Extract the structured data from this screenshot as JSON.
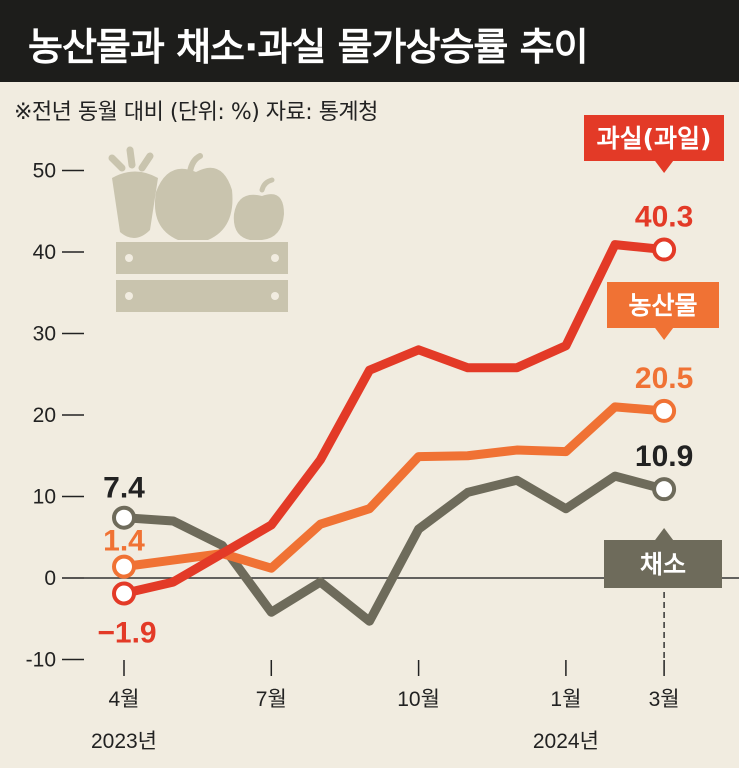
{
  "title": "농산물과 채소·과실 물가상승률 추이",
  "subtitle": "※전년 동월 대비 (단위: %) 자료: 통계청",
  "colors": {
    "background": "#f1ece0",
    "title_bg": "#1d1d1b",
    "fruit": "#e33a27",
    "agri": "#f07234",
    "veg": "#6e6b5b",
    "illustration": "#c9c4ae"
  },
  "chart_data": {
    "type": "line",
    "title": "농산물과 채소·과실 물가상승률 추이",
    "unit": "%",
    "ylim": [
      -10,
      50
    ],
    "y_ticks": [
      50,
      40,
      30,
      20,
      10,
      0,
      -10
    ],
    "y_tick_labels": [
      "50",
      "40",
      "30",
      "20",
      "10",
      "0",
      "-10"
    ],
    "x_ticks": [
      {
        "index": 0,
        "label": "4월",
        "year": "2023년"
      },
      {
        "index": 3,
        "label": "7월",
        "year": ""
      },
      {
        "index": 6,
        "label": "10월",
        "year": ""
      },
      {
        "index": 9,
        "label": "1월",
        "year": "2024년"
      },
      {
        "index": 11,
        "label": "3월",
        "year": ""
      }
    ],
    "categories": [
      "2023-04",
      "2023-05",
      "2023-06",
      "2023-07",
      "2023-08",
      "2023-09",
      "2023-10",
      "2023-11",
      "2023-12",
      "2024-01",
      "2024-02",
      "2024-03"
    ],
    "series": [
      {
        "name": "과실(과일)",
        "key": "fruit",
        "values": [
          -1.9,
          -0.5,
          3.0,
          6.5,
          14.5,
          25.5,
          28.0,
          25.8,
          25.8,
          28.5,
          40.9,
          40.3
        ],
        "start_label": "−1.9",
        "end_label": "40.3",
        "badge": "과실(과일)"
      },
      {
        "name": "농산물",
        "key": "agri",
        "values": [
          1.4,
          2.2,
          3.0,
          1.2,
          6.6,
          8.5,
          14.9,
          15.0,
          15.7,
          15.5,
          21.0,
          20.5
        ],
        "start_label": "1.4",
        "end_label": "20.5",
        "badge": "농산물"
      },
      {
        "name": "채소",
        "key": "veg",
        "values": [
          7.4,
          7.0,
          4.0,
          -4.2,
          -0.5,
          -5.3,
          6.0,
          10.5,
          12.0,
          8.5,
          12.5,
          10.9
        ],
        "start_label": "7.4",
        "end_label": "10.9",
        "badge": "채소"
      }
    ]
  }
}
